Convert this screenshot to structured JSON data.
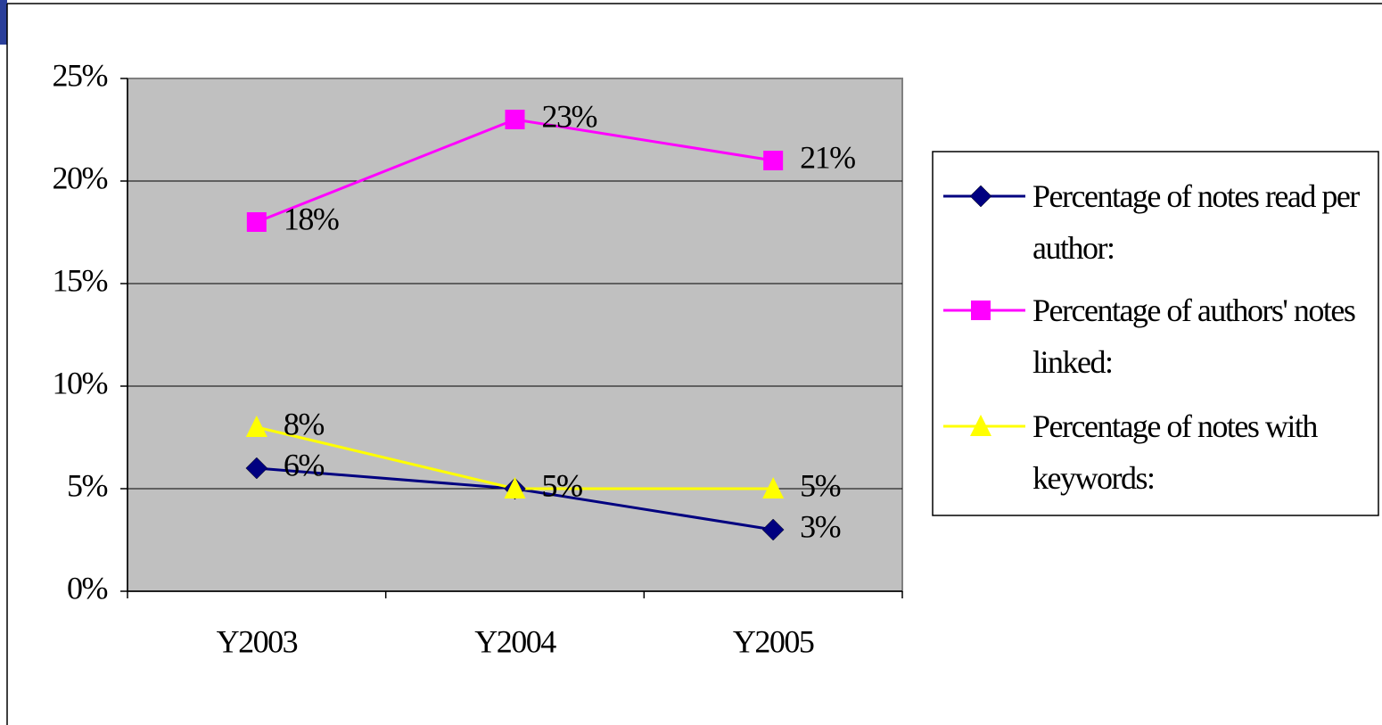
{
  "chart_data": {
    "type": "line",
    "categories": [
      "Y2003",
      "Y2004",
      "Y2005"
    ],
    "series": [
      {
        "name": "Percentage of notes read per author:",
        "color": "#000080",
        "marker": "diamond",
        "values": [
          6,
          5,
          3
        ],
        "value_labels": [
          "6%",
          "5%",
          "3%"
        ]
      },
      {
        "name": "Percentage of authors' notes linked:",
        "color": "#ff00ff",
        "marker": "square",
        "values": [
          18,
          23,
          21
        ],
        "value_labels": [
          "18%",
          "23%",
          "21%"
        ]
      },
      {
        "name": "Percentage of notes with keywords:",
        "color": "#ffff00",
        "marker": "triangle",
        "values": [
          8,
          5,
          5
        ],
        "value_labels": [
          "8%",
          "5%",
          "5%"
        ]
      }
    ],
    "ylim": [
      0,
      25
    ],
    "yticks": [
      {
        "value": 0,
        "label": "0%"
      },
      {
        "value": 5,
        "label": "5%"
      },
      {
        "value": 10,
        "label": "10%"
      },
      {
        "value": 15,
        "label": "15%"
      },
      {
        "value": 20,
        "label": "20%"
      },
      {
        "value": 25,
        "label": "25%"
      }
    ],
    "grid": true,
    "legend": "right"
  }
}
